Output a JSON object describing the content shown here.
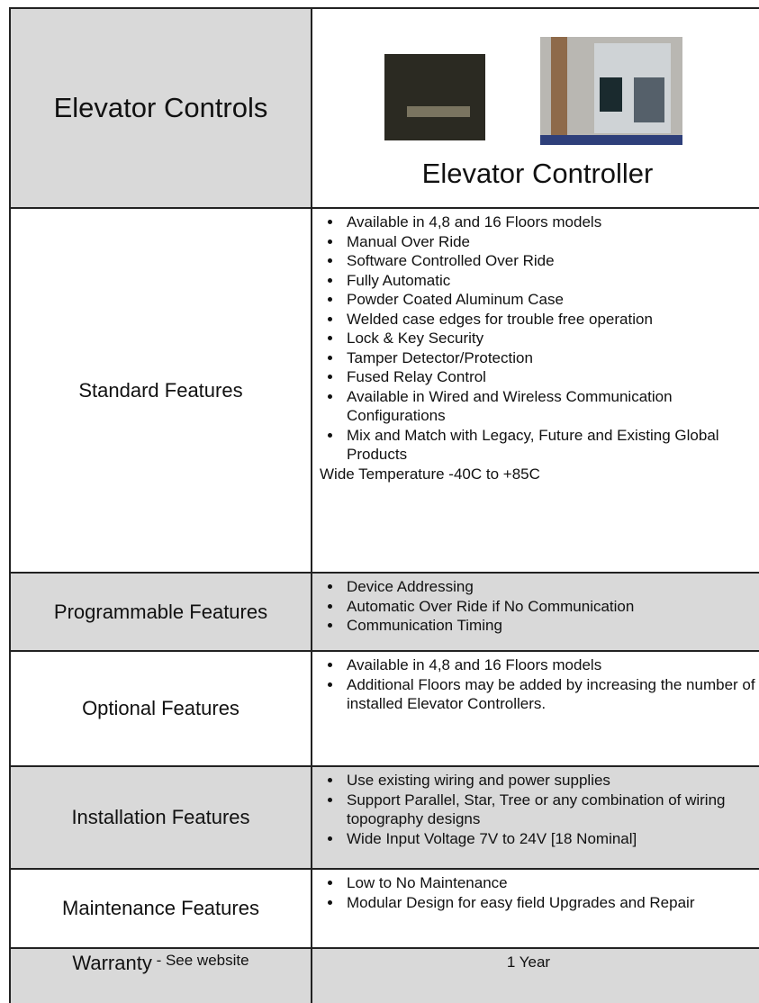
{
  "header": {
    "title": "Elevator Controls",
    "product": "Elevator Controller"
  },
  "rows": [
    {
      "label": "Standard Features",
      "items": [
        "Available in 4,8 and 16 Floors models",
        "Manual Over Ride",
        "Software Controlled Over Ride",
        "Fully Automatic",
        "Powder Coated Aluminum Case",
        "Welded case edges for trouble free operation",
        "Lock & Key Security",
        "Tamper Detector/Protection",
        "Fused Relay Control",
        "Available in Wired and Wireless Communication Configurations",
        "Mix and Match with Legacy, Future and Existing Global Products"
      ],
      "note": "Wide Temperature -40C to +85C"
    },
    {
      "label": "Programmable Features",
      "items": [
        "Device Addressing",
        "Automatic Over Ride if No Communication",
        "Communication Timing"
      ]
    },
    {
      "label": "Optional Features",
      "items": [
        "Available in 4,8 and 16 Floors models",
        "Additional Floors may be added by increasing the number of installed Elevator Controllers."
      ]
    },
    {
      "label": "Installation Features",
      "items": [
        "Use existing wiring and power supplies",
        "Support Parallel, Star, Tree or any combination of wiring topography designs",
        "Wide Input Voltage 7V to 24V [18 Nominal]"
      ]
    },
    {
      "label": "Maintenance Features",
      "items": [
        "Low to No Maintenance",
        "Modular Design for easy field Upgrades and Repair"
      ]
    }
  ],
  "warranty": {
    "label": "Warranty",
    "small": " - See website",
    "value": "1 Year"
  }
}
